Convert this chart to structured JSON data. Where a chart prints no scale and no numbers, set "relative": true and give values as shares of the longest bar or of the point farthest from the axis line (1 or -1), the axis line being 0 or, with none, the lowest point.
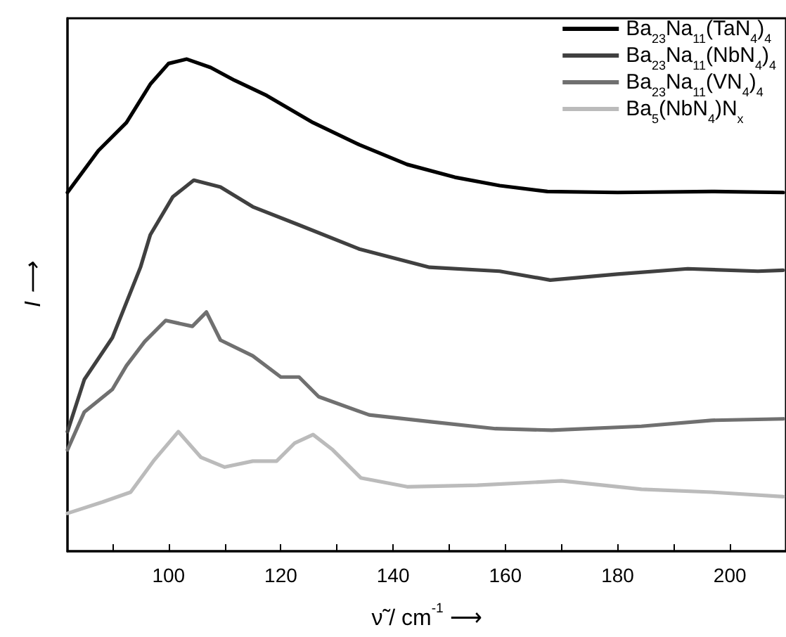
{
  "chart_data": {
    "type": "line",
    "relative": true,
    "xlabel": "ν̃ / cm$^{-1}$ ⟶",
    "ylabel": "I ⟶",
    "xlim": [
      82,
      210
    ],
    "xticks": [
      {
        "value": 90,
        "label": null
      },
      100,
      {
        "value": 110,
        "label": null
      },
      120,
      {
        "value": 130,
        "label": null
      },
      140,
      {
        "value": 150,
        "label": null
      },
      160,
      {
        "value": 170,
        "label": null
      },
      180,
      {
        "value": 190,
        "label": null
      },
      200
    ],
    "legend": "top right",
    "marker": "none",
    "line_style": "solid",
    "grid": false,
    "series": [
      {
        "name": "Ba$_{23}$Na$_{11}$(TaN$_{4}$)$_{4}$",
        "color": "#000000",
        "x": [
          82,
          87.5,
          92.5,
          96.75,
          100,
          103.25,
          107.5,
          111.75,
          117.5,
          125.75,
          134,
          142.5,
          151,
          159,
          167.5,
          180,
          196.75,
          209.5
        ],
        "values": [
          0.729,
          0.814,
          0.871,
          0.949,
          0.991,
          1,
          0.983,
          0.957,
          0.926,
          0.871,
          0.826,
          0.786,
          0.76,
          0.743,
          0.731,
          0.729,
          0.731,
          0.729
        ]
      },
      {
        "name": "Ba$_{23}$Na$_{11}$(NbN$_{4}$)$_{4}$",
        "color": "#404040",
        "x": [
          82,
          85,
          90,
          95,
          96.75,
          100.75,
          104.5,
          109.25,
          115,
          123.25,
          134,
          146.5,
          159,
          168,
          180,
          192.5,
          205,
          209.5
        ],
        "values": [
          0.243,
          0.349,
          0.434,
          0.577,
          0.643,
          0.72,
          0.754,
          0.74,
          0.7,
          0.663,
          0.614,
          0.577,
          0.569,
          0.551,
          0.563,
          0.574,
          0.569,
          0.571
        ]
      },
      {
        "name": "Ba$_{23}$Na$_{11}$(VN$_{4}$)$_{4}$",
        "color": "#707070",
        "x": [
          82,
          85,
          90,
          92.5,
          95.75,
          99.5,
          104.25,
          106.75,
          109.25,
          115,
          120,
          123.25,
          126.75,
          135.75,
          146.75,
          158.25,
          168.25,
          184.25,
          196.75,
          209.5
        ],
        "values": [
          0.206,
          0.283,
          0.329,
          0.377,
          0.426,
          0.469,
          0.457,
          0.486,
          0.429,
          0.397,
          0.354,
          0.354,
          0.314,
          0.277,
          0.263,
          0.249,
          0.246,
          0.254,
          0.266,
          0.269
        ]
      },
      {
        "name": "Ba$_{5}$(NbN$_{4}$)N$_{x}$",
        "color": "#bbbbbb",
        "x": [
          82,
          88.25,
          93.25,
          97.5,
          101.75,
          105.75,
          110,
          115,
          119.25,
          122.5,
          125.75,
          129.25,
          134.25,
          142.5,
          155,
          170,
          184.25,
          196.75,
          209.5
        ],
        "values": [
          0.077,
          0.1,
          0.12,
          0.186,
          0.243,
          0.191,
          0.171,
          0.183,
          0.183,
          0.22,
          0.237,
          0.206,
          0.149,
          0.131,
          0.134,
          0.143,
          0.126,
          0.12,
          0.111
        ]
      }
    ]
  }
}
